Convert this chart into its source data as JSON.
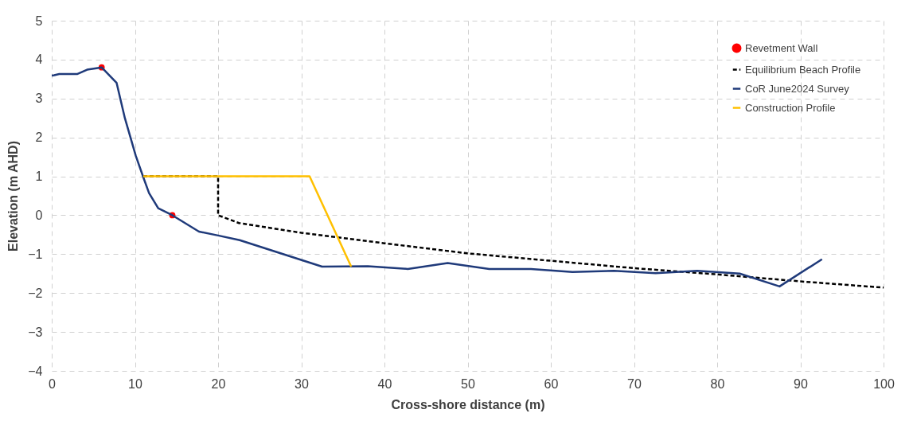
{
  "chart_data": {
    "type": "line",
    "xlabel": "Cross-shore distance (m)",
    "ylabel": "Elevation (m AHD)",
    "xlim": [
      0,
      100
    ],
    "xticks": [
      0,
      10,
      20,
      30,
      40,
      50,
      60,
      70,
      80,
      90,
      100
    ],
    "ylim": [
      -4,
      5
    ],
    "yticks": [
      -4,
      -3,
      -2,
      -1,
      0,
      1,
      2,
      3,
      4,
      5
    ],
    "grid": true,
    "legend": "top right",
    "series": [
      {
        "name": "Revetment Wall",
        "type": "scatter",
        "marker": "circle",
        "color": "#ff0000",
        "x": [
          6,
          14.5
        ],
        "values": [
          3.8,
          0
        ]
      },
      {
        "name": "Equilibrium Beach Profile",
        "line_style": "dashed",
        "color": "#000000",
        "x": [
          11,
          20,
          20,
          22.5,
          30,
          40,
          50,
          60,
          70,
          80,
          90,
          100
        ],
        "values": [
          1,
          1,
          0,
          -0.2,
          -0.45,
          -0.72,
          -0.98,
          -1.17,
          -1.36,
          -1.52,
          -1.7,
          -1.86
        ]
      },
      {
        "name": "CoR June2024 Survey",
        "line_style": "solid",
        "color": "#1f3a7a",
        "x": [
          0,
          0.3,
          0.9,
          3.1,
          4.25,
          6,
          7.8,
          8.8,
          10.1,
          11,
          11.7,
          12.8,
          14.5,
          17.7,
          20,
          22.6,
          32.5,
          38,
          42.8,
          47.6,
          52.6,
          57.6,
          62.6,
          67.6,
          72.6,
          77.6,
          82.7,
          87.5,
          92.6
        ],
        "values": [
          3.59,
          3.6,
          3.63,
          3.63,
          3.74,
          3.8,
          3.4,
          2.49,
          1.53,
          0.98,
          0.57,
          0.18,
          0,
          -0.42,
          -0.52,
          -0.64,
          -1.32,
          -1.31,
          -1.38,
          -1.23,
          -1.38,
          -1.38,
          -1.46,
          -1.43,
          -1.49,
          -1.43,
          -1.5,
          -1.83,
          -1.13
        ]
      },
      {
        "name": "Construction Profile",
        "line_style": "solid",
        "color": "#ffc000",
        "x": [
          11,
          31,
          36
        ],
        "values": [
          1,
          1,
          -1.32
        ]
      }
    ]
  }
}
